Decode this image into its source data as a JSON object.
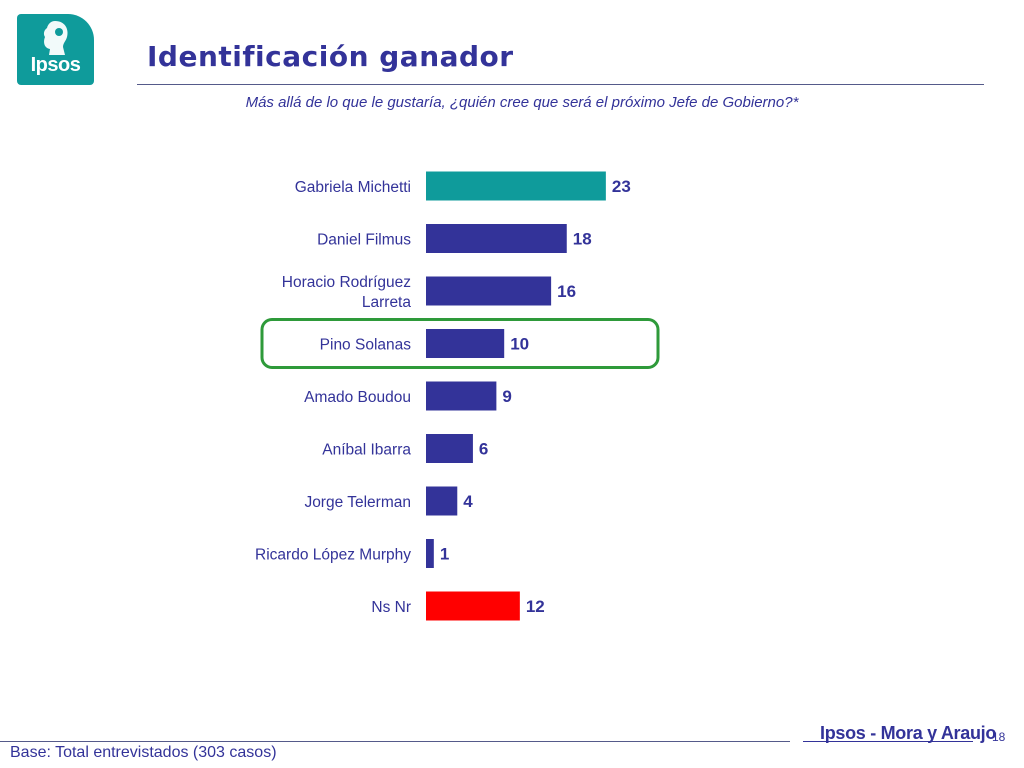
{
  "logo_text": "Ipsos",
  "title": "Identificación ganador",
  "subtitle": "Más allá de lo que le gustaría, ¿quién cree que será el próximo Jefe de Gobierno?*",
  "colors": {
    "primary_bar": "#333399",
    "leader_bar": "#0f9b9b",
    "nsnr_bar": "#ff0000",
    "highlight": "#2e9a3a",
    "text": "#333399"
  },
  "chart_data": {
    "type": "bar",
    "orientation": "horizontal",
    "categories": [
      "Gabriela Michetti",
      "Daniel Filmus",
      "Horacio Rodríguez Larreta",
      "Pino Solanas",
      "Amado Boudou",
      "Aníbal Ibarra",
      "Jorge Telerman",
      "Ricardo López Murphy",
      "Ns Nr"
    ],
    "values": [
      23,
      18,
      16,
      10,
      9,
      6,
      4,
      1,
      12
    ],
    "bar_colors": [
      "#0f9b9b",
      "#333399",
      "#333399",
      "#333399",
      "#333399",
      "#333399",
      "#333399",
      "#333399",
      "#ff0000"
    ],
    "highlighted_category": "Pino Solanas",
    "grid": false,
    "legend": "none"
  },
  "footnote": "Base: Total entrevistados (303 casos)",
  "brand": "Ipsos - Mora y Araujo",
  "page_number": "18"
}
